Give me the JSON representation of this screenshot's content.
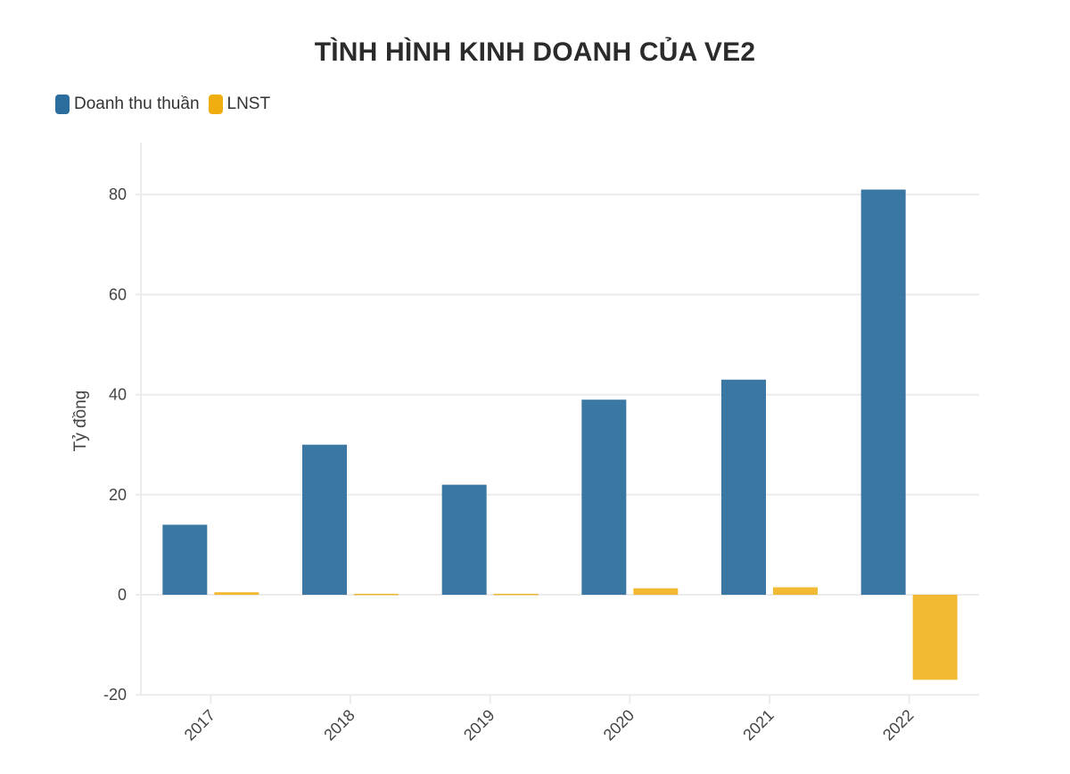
{
  "chart_data": {
    "type": "bar",
    "title": "TÌNH HÌNH KINH DOANH CỦA VE2",
    "xlabel": "",
    "ylabel": "Tỷ đồng",
    "categories": [
      "2017",
      "2018",
      "2019",
      "2020",
      "2021",
      "2022"
    ],
    "series": [
      {
        "name": "Doanh thu thuần",
        "color": "#2b6d9c",
        "values": [
          14,
          30,
          22,
          39,
          43,
          81
        ]
      },
      {
        "name": "LNST",
        "color": "#f0ad0f",
        "values": [
          0.5,
          0.2,
          0.2,
          1.3,
          1.5,
          -17
        ]
      }
    ],
    "ylim": [
      -20,
      90
    ],
    "yticks": [
      -20,
      0,
      20,
      40,
      60,
      80
    ],
    "grid": true,
    "legend_position": "top-left"
  },
  "legend": {
    "items": [
      {
        "label": "Doanh thu thuần",
        "color": "#2b6d9c"
      },
      {
        "label": "LNST",
        "color": "#f0ad0f"
      }
    ]
  }
}
